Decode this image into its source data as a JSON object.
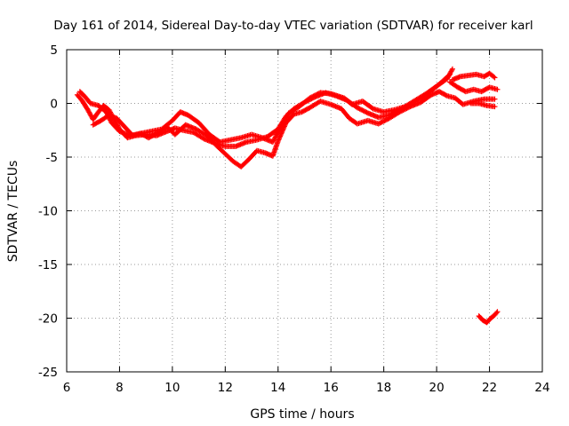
{
  "chart_data": {
    "type": "scatter",
    "title": "Day 161 of 2014, Sidereal Day-to-day VTEC variation (SDTVAR) for receiver karl",
    "xlabel": "GPS time / hours",
    "ylabel": "SDTVAR / TECUs",
    "xlim": [
      6,
      24
    ],
    "ylim": [
      -25,
      5
    ],
    "xticks": [
      "6",
      "8",
      "10",
      "12",
      "14",
      "16",
      "18",
      "20",
      "22",
      "24"
    ],
    "yticks": [
      "5",
      "0",
      "-5",
      "-10",
      "-15",
      "-20",
      "-25"
    ],
    "grid": true,
    "marker": "+",
    "series": [
      {
        "name": "SDTVAR",
        "color": "#ff0000",
        "tracks": [
          [
            [
              6.4,
              0.8
            ],
            [
              6.6,
              0.2
            ],
            [
              6.8,
              -0.6
            ],
            [
              7.0,
              -1.5
            ],
            [
              7.2,
              -0.8
            ],
            [
              7.4,
              -0.2
            ],
            [
              7.6,
              -0.6
            ],
            [
              7.8,
              -1.5
            ],
            [
              8.0,
              -2.4
            ],
            [
              8.3,
              -3.2
            ],
            [
              8.6,
              -3.0
            ],
            [
              9.0,
              -2.9
            ],
            [
              9.4,
              -3.0
            ],
            [
              9.8,
              -2.6
            ],
            [
              10.1,
              -2.3
            ],
            [
              10.4,
              -2.5
            ],
            [
              10.8,
              -2.7
            ],
            [
              11.2,
              -3.3
            ],
            [
              11.6,
              -3.7
            ],
            [
              12.0,
              -4.0
            ],
            [
              12.4,
              -4.0
            ],
            [
              12.8,
              -3.6
            ],
            [
              13.2,
              -3.4
            ],
            [
              13.6,
              -3.1
            ],
            [
              14.0,
              -2.4
            ],
            [
              14.3,
              -1.2
            ],
            [
              14.6,
              -0.5
            ],
            [
              15.0,
              0.1
            ],
            [
              15.4,
              0.6
            ],
            [
              15.8,
              1.0
            ],
            [
              16.2,
              0.7
            ],
            [
              16.6,
              0.3
            ],
            [
              17.0,
              -0.4
            ],
            [
              17.4,
              -0.9
            ],
            [
              17.8,
              -1.3
            ],
            [
              18.2,
              -1.1
            ],
            [
              18.6,
              -0.6
            ],
            [
              19.0,
              -0.1
            ],
            [
              19.4,
              0.5
            ],
            [
              19.8,
              1.2
            ],
            [
              20.2,
              2.0
            ],
            [
              20.5,
              2.7
            ]
          ],
          [
            [
              6.5,
              1.1
            ],
            [
              6.7,
              0.6
            ],
            [
              6.9,
              0.0
            ],
            [
              7.2,
              -0.2
            ],
            [
              7.5,
              -0.8
            ],
            [
              7.7,
              -1.8
            ],
            [
              8.0,
              -2.6
            ],
            [
              8.4,
              -3.0
            ],
            [
              8.8,
              -2.8
            ],
            [
              9.2,
              -2.6
            ],
            [
              9.6,
              -2.4
            ],
            [
              10.0,
              -1.6
            ],
            [
              10.3,
              -0.8
            ],
            [
              10.6,
              -1.1
            ],
            [
              11.0,
              -1.8
            ],
            [
              11.4,
              -2.9
            ],
            [
              11.8,
              -3.6
            ],
            [
              12.2,
              -3.4
            ],
            [
              12.6,
              -3.2
            ],
            [
              13.0,
              -2.9
            ],
            [
              13.4,
              -3.2
            ],
            [
              13.8,
              -3.6
            ],
            [
              14.1,
              -2.2
            ],
            [
              14.4,
              -0.9
            ],
            [
              14.8,
              -0.3
            ],
            [
              15.2,
              0.5
            ],
            [
              15.6,
              1.0
            ],
            [
              16.0,
              0.9
            ],
            [
              16.5,
              0.5
            ],
            [
              16.8,
              -0.1
            ],
            [
              17.2,
              0.2
            ],
            [
              17.6,
              -0.5
            ],
            [
              18.0,
              -0.8
            ],
            [
              18.4,
              -0.6
            ],
            [
              18.8,
              -0.3
            ],
            [
              19.2,
              0.3
            ],
            [
              19.6,
              0.9
            ],
            [
              20.0,
              1.6
            ],
            [
              20.4,
              2.3
            ],
            [
              20.6,
              3.2
            ]
          ],
          [
            [
              7.0,
              -2.0
            ],
            [
              7.3,
              -1.6
            ],
            [
              7.6,
              -1.1
            ],
            [
              7.9,
              -1.4
            ],
            [
              8.2,
              -2.2
            ],
            [
              8.5,
              -3.0
            ],
            [
              8.8,
              -2.8
            ],
            [
              9.1,
              -3.2
            ],
            [
              9.5,
              -2.7
            ],
            [
              9.8,
              -2.2
            ],
            [
              10.1,
              -2.9
            ],
            [
              10.5,
              -2.0
            ],
            [
              10.9,
              -2.4
            ],
            [
              11.3,
              -3.0
            ],
            [
              11.7,
              -4.0
            ],
            [
              12.0,
              -4.7
            ],
            [
              12.3,
              -5.4
            ],
            [
              12.6,
              -5.9
            ],
            [
              12.9,
              -5.2
            ],
            [
              13.2,
              -4.4
            ],
            [
              13.5,
              -4.6
            ],
            [
              13.8,
              -4.9
            ],
            [
              14.0,
              -3.5
            ],
            [
              14.3,
              -1.8
            ],
            [
              14.6,
              -1.0
            ],
            [
              14.9,
              -0.8
            ],
            [
              15.2,
              -0.4
            ],
            [
              15.6,
              0.2
            ],
            [
              16.0,
              -0.1
            ],
            [
              16.4,
              -0.5
            ],
            [
              16.7,
              -1.4
            ],
            [
              17.0,
              -1.9
            ],
            [
              17.4,
              -1.6
            ],
            [
              17.8,
              -1.9
            ],
            [
              18.2,
              -1.4
            ],
            [
              18.6,
              -0.8
            ],
            [
              19.0,
              -0.3
            ],
            [
              19.4,
              0.1
            ],
            [
              19.8,
              0.8
            ],
            [
              20.1,
              1.1
            ],
            [
              20.4,
              0.7
            ],
            [
              20.7,
              0.5
            ],
            [
              21.0,
              -0.1
            ],
            [
              21.4,
              0.2
            ],
            [
              21.8,
              0.4
            ],
            [
              22.2,
              0.4
            ]
          ],
          [
            [
              20.5,
              2.0
            ],
            [
              20.8,
              1.5
            ],
            [
              21.1,
              1.1
            ],
            [
              21.4,
              1.3
            ],
            [
              21.7,
              1.1
            ],
            [
              22.0,
              1.5
            ],
            [
              22.3,
              1.3
            ]
          ],
          [
            [
              20.6,
              2.2
            ],
            [
              20.9,
              2.5
            ],
            [
              21.2,
              2.6
            ],
            [
              21.5,
              2.7
            ],
            [
              21.8,
              2.5
            ],
            [
              22.0,
              2.8
            ],
            [
              22.2,
              2.4
            ]
          ],
          [
            [
              21.3,
              0.0
            ],
            [
              21.6,
              0.0
            ],
            [
              21.9,
              -0.2
            ],
            [
              22.2,
              -0.3
            ]
          ],
          [
            [
              21.6,
              -19.8
            ],
            [
              21.75,
              -20.2
            ],
            [
              21.9,
              -20.4
            ],
            [
              22.05,
              -20.0
            ],
            [
              22.2,
              -19.7
            ],
            [
              22.3,
              -19.4
            ]
          ]
        ]
      }
    ]
  }
}
